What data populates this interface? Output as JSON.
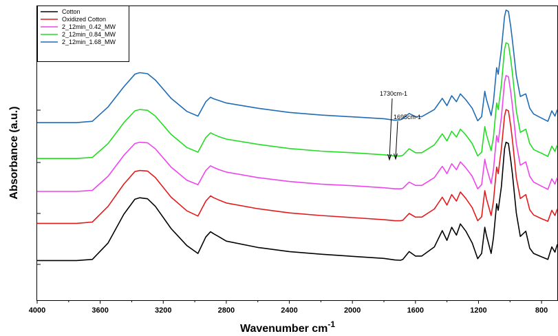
{
  "chart_data": {
    "type": "line",
    "title": "",
    "xlabel": "Wavenumber cm",
    "xlabel_superscript": "-1",
    "ylabel": "Absorbance (a.u.)",
    "xlim": [
      4000,
      700
    ],
    "x_reversed": true,
    "ylim": [
      0,
      10
    ],
    "x_ticks": [
      "4000",
      "3600",
      "3200",
      "2800",
      "2400",
      "2000",
      "1600",
      "1200",
      "800"
    ],
    "grid": false,
    "legend_position": "top-left",
    "annotations": [
      {
        "text": "1730cm-1",
        "x": 1730
      },
      {
        "text": "1695cm-1",
        "x": 1695
      }
    ],
    "x": [
      4000,
      3750,
      3650,
      3550,
      3450,
      3380,
      3350,
      3300,
      3250,
      3150,
      3050,
      2980,
      2930,
      2900,
      2880,
      2850,
      2800,
      2600,
      2400,
      2200,
      2000,
      1800,
      1730,
      1695,
      1680,
      1640,
      1600,
      1560,
      1480,
      1430,
      1400,
      1370,
      1340,
      1315,
      1280,
      1240,
      1205,
      1180,
      1160,
      1150,
      1120,
      1105,
      1085,
      1075,
      1055,
      1035,
      1025,
      1010,
      995,
      985,
      960,
      935,
      900,
      875,
      850,
      800,
      760,
      735,
      715,
      700
    ],
    "series": [
      {
        "name": "Cotton",
        "color": "#000000",
        "values": [
          0.78,
          0.78,
          0.82,
          1.45,
          2.55,
          3.12,
          3.18,
          3.14,
          2.85,
          2.0,
          1.35,
          1.05,
          1.68,
          1.88,
          1.8,
          1.7,
          1.52,
          1.28,
          1.12,
          1.02,
          0.94,
          0.86,
          0.8,
          0.79,
          0.82,
          1.12,
          0.95,
          0.95,
          1.3,
          1.92,
          1.55,
          2.05,
          1.75,
          2.18,
          1.9,
          1.45,
          0.85,
          1.05,
          2.05,
          1.75,
          1.05,
          1.65,
          2.95,
          2.7,
          3.6,
          5.05,
          5.3,
          5.25,
          4.6,
          4.1,
          2.6,
          1.7,
          1.9,
          1.25,
          1.05,
          0.92,
          0.82,
          1.3,
          1.1,
          1.4
        ]
      },
      {
        "name": "Oxidized Cotton",
        "color": "#E31A1C",
        "values": [
          2.2,
          2.2,
          2.25,
          2.85,
          3.7,
          4.18,
          4.22,
          4.2,
          3.95,
          3.2,
          2.68,
          2.48,
          3.05,
          3.25,
          3.18,
          3.1,
          2.98,
          2.76,
          2.6,
          2.5,
          2.42,
          2.34,
          2.3,
          2.3,
          2.32,
          2.58,
          2.44,
          2.44,
          2.75,
          3.2,
          2.9,
          3.3,
          3.05,
          3.4,
          3.15,
          2.8,
          2.3,
          2.45,
          3.45,
          3.15,
          2.5,
          3.05,
          4.35,
          4.1,
          5.05,
          6.3,
          6.55,
          6.5,
          5.9,
          5.4,
          3.95,
          3.15,
          3.3,
          2.72,
          2.52,
          2.38,
          2.28,
          2.7,
          2.5,
          2.75
        ]
      },
      {
        "name": "2_12min_0.42_MW",
        "color": "#EE44EE",
        "values": [
          3.42,
          3.42,
          3.46,
          4.0,
          4.8,
          5.25,
          5.3,
          5.28,
          5.05,
          4.35,
          3.85,
          3.68,
          4.22,
          4.4,
          4.34,
          4.26,
          4.16,
          3.95,
          3.8,
          3.7,
          3.64,
          3.56,
          3.52,
          3.52,
          3.54,
          3.78,
          3.65,
          3.65,
          3.95,
          4.38,
          4.1,
          4.48,
          4.25,
          4.55,
          4.32,
          4.0,
          3.52,
          3.68,
          4.65,
          4.35,
          3.72,
          4.25,
          5.55,
          5.3,
          6.25,
          7.6,
          7.85,
          7.8,
          7.2,
          6.7,
          5.25,
          4.42,
          4.55,
          4.0,
          3.78,
          3.62,
          3.5,
          3.9,
          3.7,
          3.95
        ]
      },
      {
        "name": "2_12min_0.84_MW",
        "color": "#22DD22",
        "values": [
          4.68,
          4.68,
          4.72,
          5.25,
          6.05,
          6.5,
          6.55,
          6.52,
          6.3,
          5.6,
          5.1,
          4.92,
          5.48,
          5.66,
          5.6,
          5.52,
          5.42,
          5.22,
          5.06,
          4.96,
          4.9,
          4.82,
          4.78,
          4.78,
          4.8,
          5.05,
          4.9,
          4.9,
          5.2,
          5.62,
          5.35,
          5.72,
          5.5,
          5.8,
          5.58,
          5.25,
          4.78,
          4.92,
          5.9,
          5.6,
          4.98,
          5.5,
          6.8,
          6.55,
          7.5,
          8.85,
          9.1,
          9.05,
          8.45,
          7.95,
          6.5,
          5.68,
          5.8,
          5.25,
          5.02,
          4.88,
          4.76,
          5.15,
          4.95,
          5.2
        ]
      },
      {
        "name": "2_12min_1.68_MW",
        "color": "#1F6BB5",
        "values": [
          6.05,
          6.05,
          6.1,
          6.65,
          7.42,
          7.9,
          7.96,
          7.92,
          7.68,
          6.98,
          6.48,
          6.3,
          6.85,
          7.02,
          6.96,
          6.9,
          6.8,
          6.6,
          6.44,
          6.34,
          6.27,
          6.2,
          6.14,
          6.16,
          6.2,
          6.4,
          6.28,
          6.28,
          6.55,
          6.98,
          6.7,
          7.08,
          6.85,
          7.15,
          6.92,
          6.6,
          6.12,
          6.28,
          7.25,
          6.95,
          6.32,
          6.85,
          8.15,
          7.9,
          8.85,
          10.1,
          10.35,
          10.3,
          9.7,
          9.2,
          7.85,
          7.05,
          7.15,
          6.6,
          6.38,
          6.22,
          6.1,
          6.5,
          6.3,
          6.55
        ]
      }
    ]
  }
}
